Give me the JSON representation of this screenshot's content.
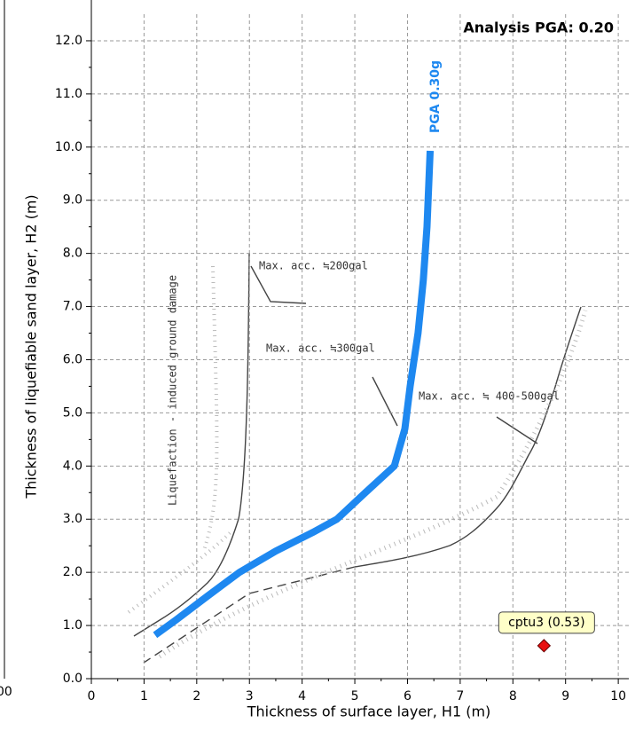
{
  "chart_data": {
    "type": "line",
    "annotation": "Analysis PGA: 0.20",
    "xlabel": "Thickness of surface layer, H1 (m)",
    "ylabel": "Thickness of liquefiable sand layer, H2 (m)",
    "xlim": [
      0,
      10.2
    ],
    "ylim": [
      0,
      12.5
    ],
    "xticks": [
      0,
      1,
      2,
      3,
      4,
      5,
      6,
      7,
      8,
      9,
      10
    ],
    "yticks": [
      {
        "value": 0,
        "label": "0.0"
      },
      {
        "value": 1,
        "label": "1.0"
      },
      {
        "value": 2,
        "label": "2.0"
      },
      {
        "value": 3,
        "label": "3.0"
      },
      {
        "value": 4,
        "label": "4.0"
      },
      {
        "value": 5,
        "label": "5.0"
      },
      {
        "value": 6,
        "label": "6.0"
      },
      {
        "value": 7,
        "label": "7.0"
      },
      {
        "value": 8,
        "label": "8.0"
      },
      {
        "value": 9,
        "label": "9.0"
      },
      {
        "value": 10,
        "label": "10.0"
      },
      {
        "value": 11,
        "label": "11.0"
      },
      {
        "value": 12,
        "label": "12.0"
      }
    ],
    "grid": true,
    "series": [
      {
        "name": "PGA 0.30g",
        "color": "#1e88f0",
        "x": [
          1.21,
          1.6,
          2.2,
          2.81,
          3.5,
          4.2,
          4.66,
          5.2,
          5.75,
          5.95,
          6.05,
          6.2,
          6.3,
          6.37,
          6.43
        ],
        "values": [
          0.82,
          1.1,
          1.55,
          2.0,
          2.4,
          2.75,
          3.0,
          3.5,
          4.0,
          4.7,
          5.5,
          6.5,
          7.5,
          8.5,
          9.93
        ]
      },
      {
        "name": "cptu3 (0.53)",
        "color": "#e81010",
        "marker": "diamond",
        "x": [
          8.59
        ],
        "values": [
          0.62
        ]
      }
    ],
    "background_notes": [
      "Max. acc. ≒200gal",
      "Max. acc. ≒300gal",
      "Max. acc. ≒ 400-500gal",
      "Liquefaction - induced ground damage"
    ],
    "left_fragment": "00"
  }
}
